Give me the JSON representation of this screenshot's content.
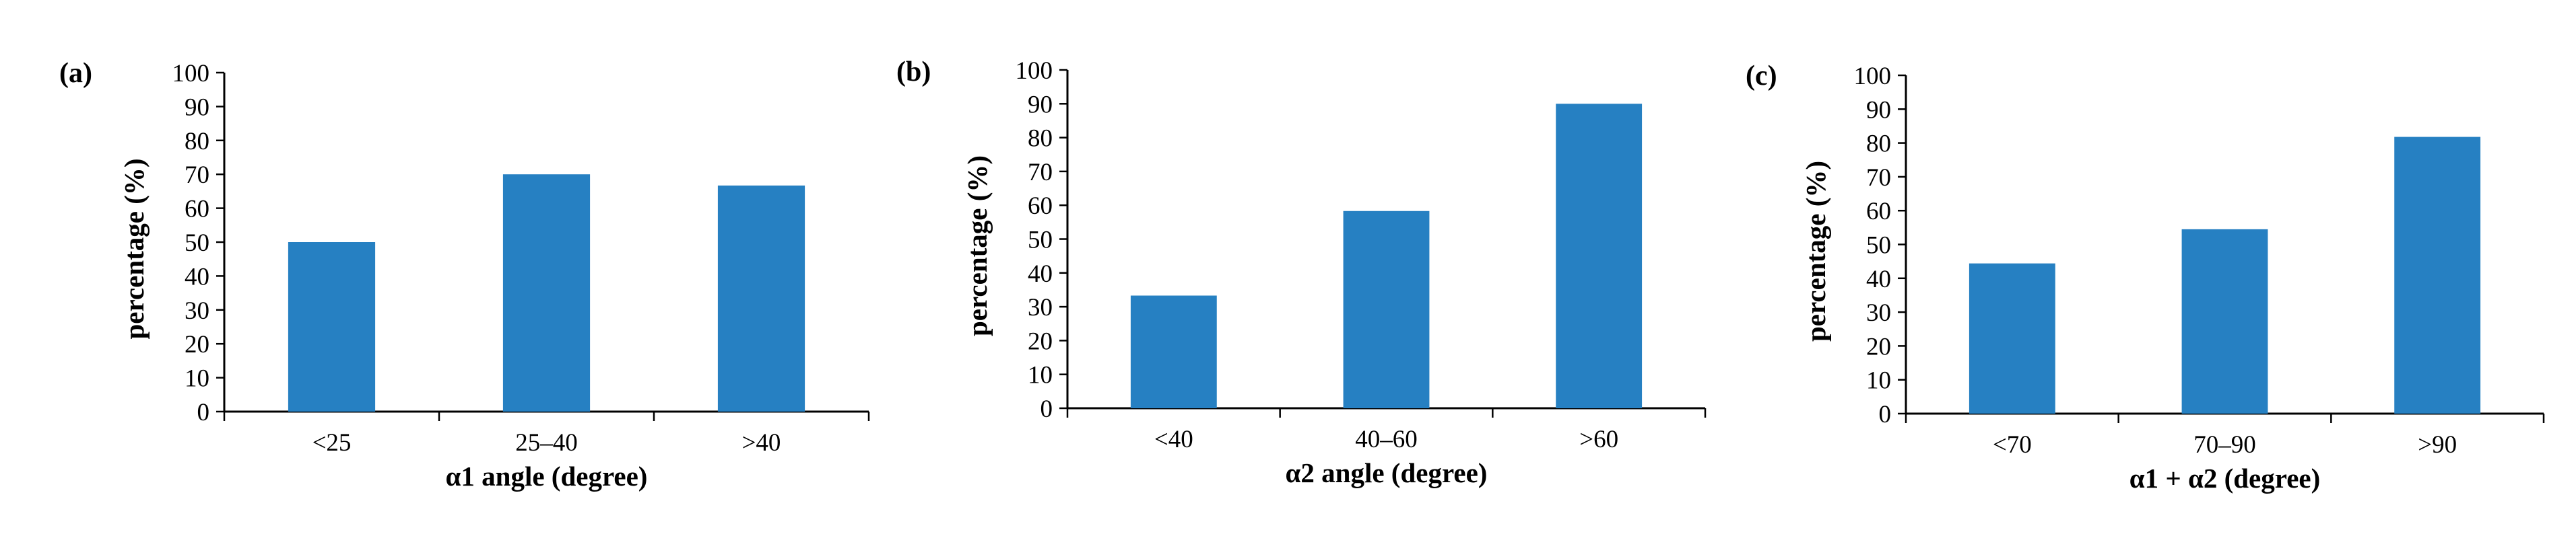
{
  "style": {
    "bar_color": "#2680c2",
    "axis_color": "#000000"
  },
  "chart_data": [
    {
      "type": "bar",
      "panel_label": "(a)",
      "categories": [
        "<25",
        "25–40",
        ">40"
      ],
      "values": [
        50,
        70,
        66.7
      ],
      "xlabel": "α1 angle (degree)",
      "ylabel": "percentage (%)",
      "ylim": [
        0,
        100
      ],
      "yticks": [
        "0",
        "10",
        "20",
        "30",
        "40",
        "50",
        "60",
        "70",
        "80",
        "90",
        "100"
      ],
      "grid": false,
      "legend": "none"
    },
    {
      "type": "bar",
      "panel_label": "(b)",
      "categories": [
        "<40",
        "40–60",
        ">60"
      ],
      "values": [
        33.3,
        58.3,
        90
      ],
      "xlabel": "α2 angle (degree)",
      "ylabel": "percentage (%)",
      "ylim": [
        0,
        100
      ],
      "yticks": [
        "0",
        "10",
        "20",
        "30",
        "40",
        "50",
        "60",
        "70",
        "80",
        "90",
        "100"
      ],
      "grid": false,
      "legend": "none"
    },
    {
      "type": "bar",
      "panel_label": "(c)",
      "categories": [
        "<70",
        "70–90",
        ">90"
      ],
      "values": [
        44.4,
        54.5,
        81.8
      ],
      "xlabel": "α1 + α2  (degree)",
      "ylabel": "percentage (%)",
      "ylim": [
        0,
        100
      ],
      "yticks": [
        "0",
        "10",
        "20",
        "30",
        "40",
        "50",
        "60",
        "70",
        "80",
        "90",
        "100"
      ],
      "grid": false,
      "legend": "none"
    }
  ]
}
